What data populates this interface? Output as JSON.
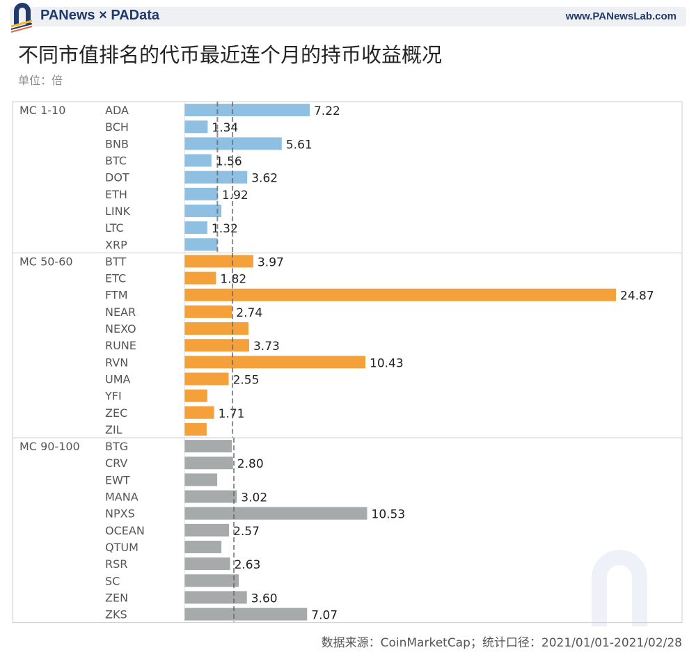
{
  "header": {
    "brand": "PANews × PAData",
    "site": "www.PANewsLab.com"
  },
  "title": "不同市值排名的代币最近连个月的持币收益概况",
  "unit": "单位：倍",
  "footer": "数据来源：CoinMarketCap；统计口径：2021/01/01-2021/02/28",
  "watermarks": [
    "PANews",
    "PAData"
  ],
  "colors": {
    "MC 1-10": "#8fc0e2",
    "MC 50-60": "#f5a13b",
    "MC 90-100": "#a7aaab",
    "reference_line": "#666666"
  },
  "chart_data": {
    "type": "bar",
    "orientation": "horizontal",
    "xlim": [
      0,
      25
    ],
    "grid": false,
    "groups": [
      {
        "name": "MC 1-10",
        "reference_lines": [
          1.9,
          2.77
        ],
        "categories": [
          "ADA",
          "BCH",
          "BNB",
          "BTC",
          "DOT",
          "ETH",
          "LINK",
          "LTC",
          "XRP"
        ],
        "values": [
          7.22,
          1.34,
          5.61,
          1.56,
          3.62,
          1.92,
          2.13,
          1.32,
          1.9
        ],
        "labels": [
          "7.22",
          "1.34",
          "5.61",
          "1.56",
          "3.62",
          "1.92",
          "",
          "1.32",
          ""
        ]
      },
      {
        "name": "MC 50-60",
        "reference_lines": [
          2.77
        ],
        "categories": [
          "BTT",
          "ETC",
          "FTM",
          "NEAR",
          "NEXO",
          "RUNE",
          "RVN",
          "UMA",
          "YFI",
          "ZEC",
          "ZIL"
        ],
        "values": [
          3.97,
          1.82,
          24.87,
          2.74,
          3.69,
          3.73,
          10.43,
          2.55,
          1.32,
          1.71,
          1.28
        ],
        "labels": [
          "3.97",
          "1.82",
          "24.87",
          "2.74",
          "",
          "3.73",
          "10.43",
          "2.55",
          "",
          "1.71",
          ""
        ]
      },
      {
        "name": "MC 90-100",
        "reference_lines": [
          2.85
        ],
        "categories": [
          "BTG",
          "CRV",
          "EWT",
          "MANA",
          "NPXS",
          "OCEAN",
          "QTUM",
          "RSR",
          "SC",
          "ZEN",
          "ZKS"
        ],
        "values": [
          2.73,
          2.8,
          1.89,
          3.02,
          10.53,
          2.57,
          2.13,
          2.63,
          3.13,
          3.6,
          7.07
        ],
        "labels": [
          "",
          "2.80",
          "",
          "3.02",
          "10.53",
          "2.57",
          "",
          "2.63",
          "",
          "3.60",
          "7.07"
        ]
      }
    ]
  }
}
